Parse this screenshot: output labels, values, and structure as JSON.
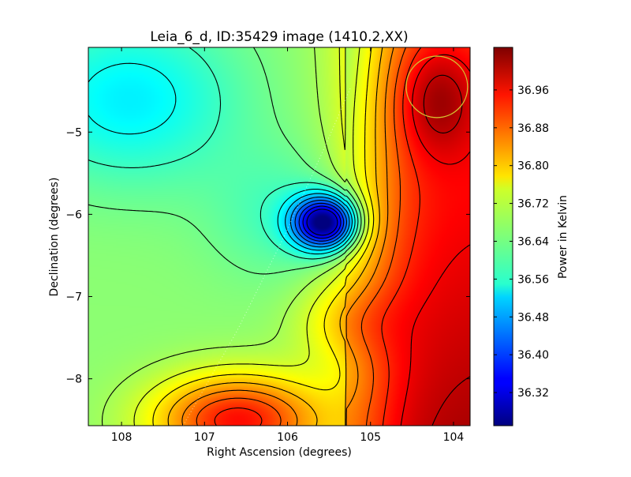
{
  "chart_data": {
    "type": "heatmap",
    "title": "Leia_6_d, ID:35429 image (1410.2,XX)",
    "xlabel": "Right Ascension (degrees)",
    "ylabel": "Declination (degrees)",
    "colorbar_label": "Power in Kelvin",
    "xlim": [
      108.4,
      103.8
    ],
    "ylim": [
      -8.57,
      -3.97
    ],
    "x_ticks": [
      108,
      107,
      106,
      105,
      104
    ],
    "y_ticks": [
      -5,
      -6,
      -7,
      -8
    ],
    "x_tick_labels": [
      "108",
      "107",
      "106",
      "105",
      "104"
    ],
    "y_tick_labels": [
      "−5",
      "−6",
      "−7",
      "−8"
    ],
    "colorbar_range": [
      36.25,
      37.05
    ],
    "colorbar_ticks": [
      36.32,
      36.4,
      36.48,
      36.56,
      36.64,
      36.72,
      36.8,
      36.88,
      36.96
    ],
    "colorbar_tick_labels": [
      "36.32",
      "36.40",
      "36.48",
      "36.56",
      "36.64",
      "36.72",
      "36.80",
      "36.88",
      "36.96"
    ],
    "colormap": "jet",
    "field_features": [
      {
        "feature": "minimum",
        "ra": 105.55,
        "dec": -6.1,
        "value": 36.3
      },
      {
        "feature": "low plateau",
        "ra": 107.9,
        "dec": -4.6,
        "value": 36.48
      },
      {
        "feature": "high region",
        "ra": 104.3,
        "dec": -4.7,
        "value": 37.02
      },
      {
        "feature": "high region",
        "ra": 106.6,
        "dec": -8.5,
        "value": 37.0
      }
    ],
    "grid": false,
    "marker_circle": {
      "ra": 104.2,
      "dec": -4.45,
      "radius_deg": 0.37,
      "color": "#d4c030"
    }
  }
}
